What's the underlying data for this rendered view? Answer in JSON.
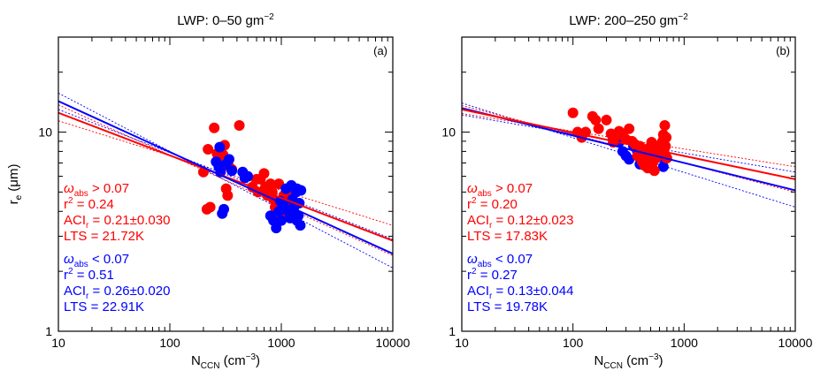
{
  "chart_data": [
    {
      "type": "scatter",
      "panel_label": "(a)",
      "title": {
        "main": "LWP: 0–50 gm",
        "sup": "−2"
      },
      "xlabel": {
        "main": "N",
        "sub": "CCN",
        "rest": " (cm",
        "sup": "−3",
        "end": ")"
      },
      "ylabel": {
        "main": "r",
        "sub": "e",
        "rest": " (μm)"
      },
      "x_scale": "log",
      "y_scale": "log",
      "xlim": [
        10,
        10000
      ],
      "ylim": [
        1,
        30
      ],
      "xticks": [
        10,
        100,
        1000,
        10000
      ],
      "xtick_labels": [
        "10",
        "100",
        "1000",
        "10000"
      ],
      "yticks": [
        1,
        10
      ],
      "ytick_labels": [
        "1",
        "10"
      ],
      "series": [
        {
          "color": "#ff0000",
          "points": [
            [
              200,
              6.3
            ],
            [
              215,
              4.1
            ],
            [
              230,
              4.2
            ],
            [
              220,
              8.2
            ],
            [
              265,
              7.8
            ],
            [
              280,
              7.0
            ],
            [
              300,
              7.7
            ],
            [
              320,
              5.2
            ],
            [
              340,
              6.7
            ],
            [
              360,
              6.5
            ],
            [
              310,
              8.6
            ],
            [
              330,
              4.8
            ],
            [
              250,
              10.5
            ],
            [
              420,
              10.8
            ],
            [
              550,
              5.3
            ],
            [
              600,
              5.8
            ],
            [
              620,
              5.0
            ],
            [
              650,
              5.8
            ],
            [
              700,
              6.2
            ],
            [
              720,
              5.3
            ],
            [
              750,
              4.8
            ],
            [
              800,
              5.5
            ],
            [
              830,
              5.0
            ],
            [
              850,
              4.6
            ],
            [
              880,
              4.2
            ],
            [
              900,
              4.5
            ],
            [
              950,
              5.5
            ],
            [
              980,
              4.2
            ],
            [
              1000,
              3.9
            ],
            [
              1050,
              4.8
            ],
            [
              1080,
              4.4
            ],
            [
              1100,
              4.0
            ],
            [
              1150,
              5.0
            ]
          ],
          "fit": {
            "x": [
              10,
              10000
            ],
            "y": [
              12.5,
              2.85
            ]
          },
          "ci": [
            {
              "x": [
                10,
                10000
              ],
              "y": [
                13.7,
                2.4
              ]
            },
            {
              "x": [
                10,
                10000
              ],
              "y": [
                11.4,
                3.4
              ]
            }
          ],
          "stats": {
            "omega_label": "ω",
            "omega_sub": "abs",
            "omega_rel": " > 0.07",
            "r2_label": "r",
            "r2_sup": "2",
            "r2_value": " =  0.24",
            "aci_label": "ACI",
            "aci_sub": "r",
            "aci_value": " =  0.21±0.030",
            "lts": "LTS =  21.72K"
          }
        },
        {
          "color": "#0000ff",
          "points": [
            [
              260,
              7.1
            ],
            [
              275,
              6.7
            ],
            [
              285,
              6.3
            ],
            [
              295,
              3.9
            ],
            [
              305,
              4.1
            ],
            [
              320,
              6.9
            ],
            [
              340,
              7.3
            ],
            [
              360,
              6.4
            ],
            [
              280,
              8.4
            ],
            [
              450,
              6.3
            ],
            [
              470,
              5.9
            ],
            [
              500,
              6.0
            ],
            [
              800,
              3.8
            ],
            [
              850,
              3.6
            ],
            [
              900,
              3.3
            ],
            [
              950,
              4.0
            ],
            [
              980,
              4.5
            ],
            [
              1000,
              3.6
            ],
            [
              1050,
              4.3
            ],
            [
              1100,
              5.2
            ],
            [
              1150,
              4.0
            ],
            [
              1200,
              3.7
            ],
            [
              1230,
              5.4
            ],
            [
              1260,
              4.6
            ],
            [
              1300,
              4.2
            ],
            [
              1330,
              3.9
            ],
            [
              1360,
              5.0
            ],
            [
              1380,
              3.6
            ],
            [
              1420,
              3.8
            ],
            [
              1450,
              4.4
            ],
            [
              1480,
              3.4
            ],
            [
              1500,
              5.1
            ],
            [
              1380,
              5.2
            ]
          ],
          "fit": {
            "x": [
              10,
              10000
            ],
            "y": [
              14.3,
              2.45
            ]
          },
          "ci": [
            {
              "x": [
                10,
                10000
              ],
              "y": [
                15.7,
                2.08
              ]
            },
            {
              "x": [
                10,
                10000
              ],
              "y": [
                13.0,
                2.9
              ]
            }
          ],
          "stats": {
            "omega_label": "ω",
            "omega_sub": "abs",
            "omega_rel": " < 0.07",
            "r2_label": "r",
            "r2_sup": "2",
            "r2_value": " =  0.51",
            "aci_label": "ACI",
            "aci_sub": "r",
            "aci_value": " =  0.26±0.020",
            "lts": "LTS =  22.91K"
          }
        }
      ]
    },
    {
      "type": "scatter",
      "panel_label": "(b)",
      "title": {
        "main": "LWP: 200–250 gm",
        "sup": "−2"
      },
      "xlabel": {
        "main": "N",
        "sub": "CCN",
        "rest": " (cm",
        "sup": "−3",
        "end": ")"
      },
      "ylabel": {
        "main": "",
        "sub": "",
        "rest": ""
      },
      "x_scale": "log",
      "y_scale": "log",
      "xlim": [
        10,
        10000
      ],
      "ylim": [
        1,
        30
      ],
      "xticks": [
        10,
        100,
        1000,
        10000
      ],
      "xtick_labels": [
        "10",
        "100",
        "1000",
        "10000"
      ],
      "yticks": [
        1,
        10
      ],
      "ytick_labels": [
        "1",
        "10"
      ],
      "series": [
        {
          "color": "#0000ff",
          "points": [
            [
              230,
              9.2
            ],
            [
              260,
              8.9
            ],
            [
              280,
              8.0
            ],
            [
              300,
              7.6
            ],
            [
              320,
              7.3
            ],
            [
              350,
              8.5
            ],
            [
              380,
              8.0
            ],
            [
              400,
              6.9
            ],
            [
              430,
              7.7
            ],
            [
              460,
              7.2
            ],
            [
              500,
              7.9
            ],
            [
              550,
              8.2
            ],
            [
              600,
              7.5
            ],
            [
              650,
              6.7
            ],
            [
              680,
              7.6
            ]
          ],
          "fit": {
            "x": [
              10,
              10000
            ],
            "y": [
              13.2,
              5.1
            ]
          },
          "ci": [
            {
              "x": [
                10,
                10000
              ],
              "y": [
                14.0,
                4.2
              ]
            },
            {
              "x": [
                10,
                10000
              ],
              "y": [
                12.2,
                6.3
              ]
            }
          ],
          "stats": {
            "omega_label": "ω",
            "omega_sub": "abs",
            "omega_rel": " < 0.07",
            "r2_label": "r",
            "r2_sup": "2",
            "r2_value": " =  0.27",
            "aci_label": "ACI",
            "aci_sub": "r",
            "aci_value": " =  0.13±0.044",
            "lts": "LTS =  19.78K"
          }
        },
        {
          "color": "#ff0000",
          "points": [
            [
              100,
              12.5
            ],
            [
              110,
              10.0
            ],
            [
              120,
              9.4
            ],
            [
              130,
              10.0
            ],
            [
              150,
              12.0
            ],
            [
              160,
              11.5
            ],
            [
              170,
              10.4
            ],
            [
              200,
              11.5
            ],
            [
              220,
              9.8
            ],
            [
              230,
              8.9
            ],
            [
              250,
              9.6
            ],
            [
              260,
              10.1
            ],
            [
              280,
              9.8
            ],
            [
              300,
              9.2
            ],
            [
              320,
              10.4
            ],
            [
              340,
              9.0
            ],
            [
              360,
              8.7
            ],
            [
              380,
              7.6
            ],
            [
              400,
              8.5
            ],
            [
              420,
              7.1
            ],
            [
              440,
              6.8
            ],
            [
              450,
              7.8
            ],
            [
              470,
              6.6
            ],
            [
              480,
              8.3
            ],
            [
              500,
              7.5
            ],
            [
              510,
              8.9
            ],
            [
              520,
              7.0
            ],
            [
              540,
              6.4
            ],
            [
              560,
              7.4
            ],
            [
              580,
              8.1
            ],
            [
              600,
              8.6
            ],
            [
              620,
              7.7
            ],
            [
              640,
              9.0
            ],
            [
              650,
              9.7
            ],
            [
              660,
              8.1
            ],
            [
              670,
              10.8
            ],
            [
              680,
              8.5
            ],
            [
              700,
              7.4
            ],
            [
              690,
              9.4
            ]
          ],
          "fit": {
            "x": [
              10,
              10000
            ],
            "y": [
              13.0,
              5.8
            ]
          },
          "ci": [
            {
              "x": [
                10,
                10000
              ],
              "y": [
                13.6,
                5.0
              ]
            },
            {
              "x": [
                10,
                10000
              ],
              "y": [
                12.4,
                6.7
              ]
            }
          ],
          "stats": {
            "omega_label": "ω",
            "omega_sub": "abs",
            "omega_rel": " > 0.07",
            "r2_label": "r",
            "r2_sup": "2",
            "r2_value": " =  0.20",
            "aci_label": "ACI",
            "aci_sub": "r",
            "aci_value": " =  0.12±0.023",
            "lts": "LTS =  17.83K"
          }
        }
      ]
    }
  ]
}
